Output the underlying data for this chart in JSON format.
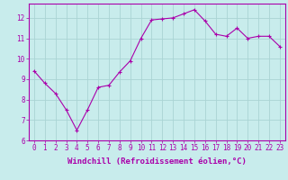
{
  "x": [
    0,
    1,
    2,
    3,
    4,
    5,
    6,
    7,
    8,
    9,
    10,
    11,
    12,
    13,
    14,
    15,
    16,
    17,
    18,
    19,
    20,
    21,
    22,
    23
  ],
  "y": [
    9.4,
    8.8,
    8.3,
    7.5,
    6.5,
    7.5,
    8.6,
    8.7,
    9.35,
    9.9,
    11.0,
    11.9,
    11.95,
    12.0,
    12.2,
    12.4,
    11.85,
    11.2,
    11.1,
    11.5,
    11.0,
    11.1,
    11.1,
    10.6
  ],
  "line_color": "#aa00aa",
  "marker": "+",
  "background_color": "#c8ecec",
  "grid_color": "#aad4d4",
  "xlabel": "Windchill (Refroidissement éolien,°C)",
  "ylim": [
    6,
    12.7
  ],
  "xlim": [
    -0.5,
    23.5
  ],
  "yticks": [
    6,
    7,
    8,
    9,
    10,
    11,
    12
  ],
  "xticks": [
    0,
    1,
    2,
    3,
    4,
    5,
    6,
    7,
    8,
    9,
    10,
    11,
    12,
    13,
    14,
    15,
    16,
    17,
    18,
    19,
    20,
    21,
    22,
    23
  ],
  "tick_fontsize": 5.5,
  "xlabel_fontsize": 6.5
}
